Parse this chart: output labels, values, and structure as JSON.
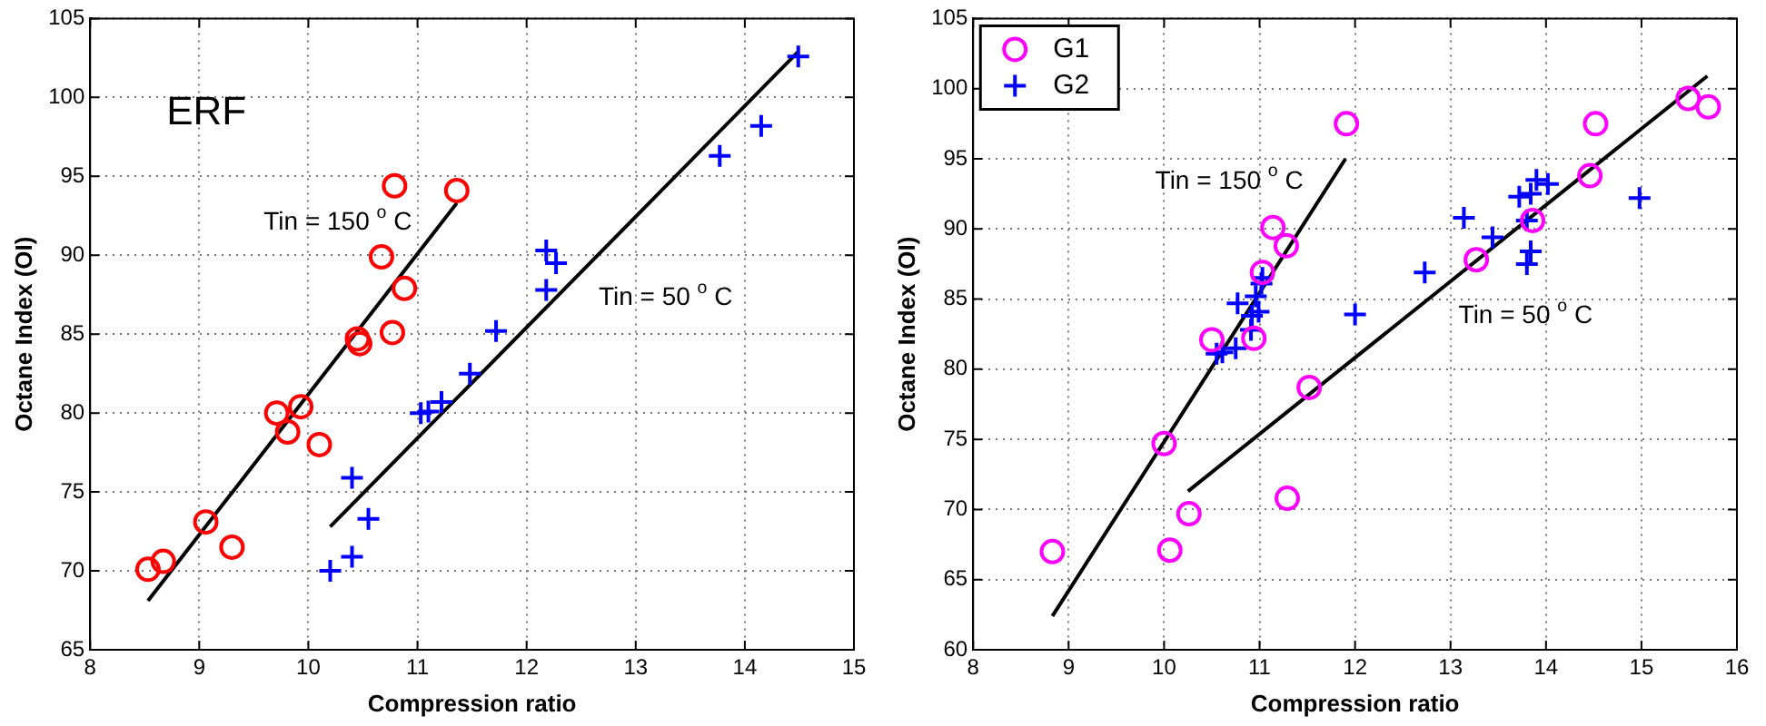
{
  "chart_data": [
    {
      "type": "scatter",
      "xlabel": "Compression ratio",
      "ylabel": "Octane Index (OI)",
      "xlim": [
        8,
        15
      ],
      "ylim": [
        65,
        105
      ],
      "xticks": [
        8,
        9,
        10,
        11,
        12,
        13,
        14,
        15
      ],
      "yticks": [
        65,
        70,
        75,
        80,
        85,
        90,
        95,
        100,
        105
      ],
      "grid": true,
      "legend": false,
      "annotations": [
        "ERF"
      ],
      "series": [
        {
          "type": "scatter",
          "marker": "circle",
          "color": "#ff0000",
          "x": [
            8.53,
            8.67,
            9.06,
            9.3,
            9.71,
            9.81,
            9.93,
            10.1,
            10.45,
            10.47,
            10.77,
            10.67,
            10.88,
            10.79,
            11.36
          ],
          "values": [
            70.1,
            70.6,
            73.1,
            71.5,
            80,
            78.8,
            80.4,
            78,
            84.7,
            84.4,
            85.1,
            89.9,
            87.9,
            94.4,
            94.1
          ]
        },
        {
          "type": "scatter",
          "marker": "cross",
          "color": "#0000ff",
          "x": [
            10.2,
            10.4,
            10.55,
            10.4,
            11.03,
            11.1,
            11.22,
            11.48,
            11.72,
            12.18,
            12.18,
            12.27,
            13.77,
            14.15,
            14.49
          ],
          "values": [
            70,
            70.9,
            73.3,
            75.9,
            80,
            80.1,
            80.7,
            82.5,
            85.2,
            87.8,
            90.3,
            89.5,
            96.3,
            98.2,
            102.6
          ]
        },
        {
          "type": "line",
          "name": "Tin = 150 $^{o}$ C",
          "marker": "none",
          "color": "#000000",
          "x": [
            8.53,
            11.36
          ],
          "values": [
            68.1,
            93.3
          ]
        },
        {
          "type": "line",
          "name": "Tin = 50 $^{o}$ C",
          "marker": "none",
          "color": "#000000",
          "x": [
            10.2,
            14.49
          ],
          "values": [
            72.8,
            102.9
          ]
        }
      ]
    },
    {
      "type": "scatter",
      "xlabel": "Compression ratio",
      "ylabel": "Octane Index (OI)",
      "xlim": [
        8,
        16
      ],
      "ylim": [
        60,
        105
      ],
      "xticks": [
        8,
        9,
        10,
        11,
        12,
        13,
        14,
        15,
        16
      ],
      "yticks": [
        60,
        65,
        70,
        75,
        80,
        85,
        90,
        95,
        100,
        105
      ],
      "grid": true,
      "legend": "top left",
      "series": [
        {
          "type": "scatter",
          "name": "G1",
          "marker": "circle",
          "color": "#ff00ff",
          "x": [
            8.83,
            10.06,
            10.26,
            10.0,
            11.29,
            11.52,
            10.5,
            10.94,
            11.03,
            11.14,
            11.28,
            11.91,
            13.27,
            13.86,
            14.46,
            14.52,
            15.49,
            15.7
          ],
          "values": [
            67,
            67.1,
            69.7,
            74.7,
            70.8,
            78.7,
            82.1,
            82.2,
            86.9,
            90.1,
            88.8,
            97.5,
            87.8,
            90.6,
            93.8,
            97.5,
            99.3,
            98.7
          ]
        },
        {
          "type": "scatter",
          "name": "G2",
          "marker": "cross",
          "color": "#0000ff",
          "x": [
            10.55,
            10.61,
            10.75,
            10.77,
            10.91,
            10.92,
            10.99,
            10.96,
            11.02,
            11.03,
            12.0,
            12.73,
            13.14,
            13.44,
            13.72,
            13.84,
            13.9,
            14.02,
            13.8,
            13.84,
            13.8,
            14.98
          ],
          "values": [
            81.1,
            81.2,
            81.5,
            84.7,
            82.8,
            83.8,
            84.1,
            85.2,
            86.1,
            86.5,
            83.9,
            86.9,
            90.8,
            89.4,
            92.3,
            92.5,
            93.5,
            93.2,
            90.6,
            88.4,
            87.5,
            92.2
          ]
        },
        {
          "type": "line",
          "name": "Tin = 150 $^{o}$ C",
          "marker": "none",
          "color": "#000000",
          "x": [
            8.83,
            11.9
          ],
          "values": [
            62.4,
            95.0
          ]
        },
        {
          "type": "line",
          "name": "Tin = 50 $^{o}$ C",
          "marker": "none",
          "color": "#000000",
          "x": [
            10.25,
            15.69
          ],
          "values": [
            71.3,
            100.9
          ]
        }
      ]
    }
  ]
}
